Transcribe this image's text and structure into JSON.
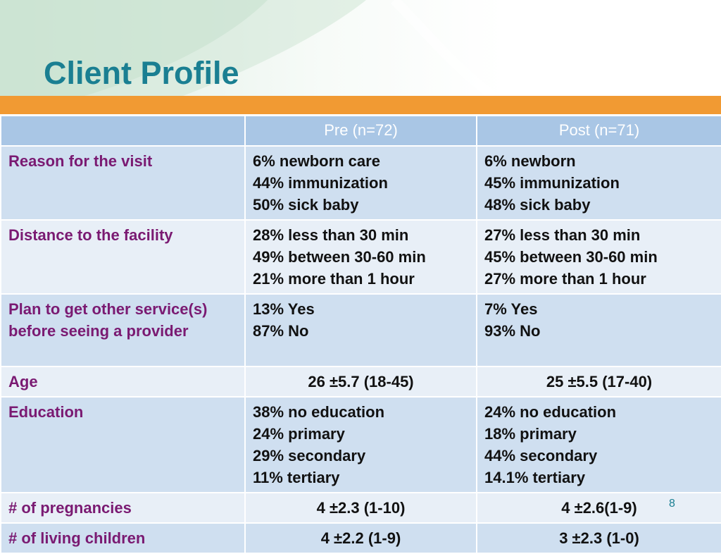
{
  "slide": {
    "title": "Client Profile",
    "page_number": "8"
  },
  "table": {
    "headers": [
      "",
      "Pre (n=72)",
      "Post (n=71)"
    ],
    "rows": [
      {
        "label": "Reason for the visit",
        "pre": [
          "6% newborn care",
          "44% immunization",
          "50% sick baby"
        ],
        "post": [
          "6% newborn",
          "45% immunization",
          "48% sick baby"
        ]
      },
      {
        "label": "Distance to the facility",
        "pre": [
          "28% less than 30 min",
          "49% between 30-60 min",
          "21% more than 1 hour"
        ],
        "post": [
          "27% less than 30 min",
          "45% between 30-60 min",
          "27% more than 1 hour"
        ]
      },
      {
        "label": "Plan to get other service(s) before seeing a provider",
        "pre": [
          "13% Yes",
          "87% No"
        ],
        "post": [
          "7% Yes",
          "93% No"
        ]
      },
      {
        "label": "Age",
        "pre": [
          "26 ±5.7 (18-45)"
        ],
        "post": [
          "25 ±5.5 (17-40)"
        ]
      },
      {
        "label": "Education",
        "pre": [
          "38% no education",
          "24% primary",
          "29% secondary",
          "11% tertiary"
        ],
        "post": [
          "24% no education",
          "18% primary",
          "44% secondary",
          "14.1% tertiary"
        ]
      },
      {
        "label": "# of pregnancies",
        "pre": [
          "4 ±2.3 (1-10)"
        ],
        "post": [
          "4 ±2.6(1-9)"
        ]
      },
      {
        "label": "# of living children",
        "pre": [
          "4 ±2.2 (1-9)"
        ],
        "post": [
          "3 ±2.3 (1-0)"
        ]
      }
    ]
  },
  "colors": {
    "title": "#1a7f92",
    "accent_bar": "#f19a33",
    "header_row": "#a9c6e5",
    "row_dark": "#cfdff0",
    "row_light": "#e8eff7",
    "label_text": "#7a1a72"
  }
}
